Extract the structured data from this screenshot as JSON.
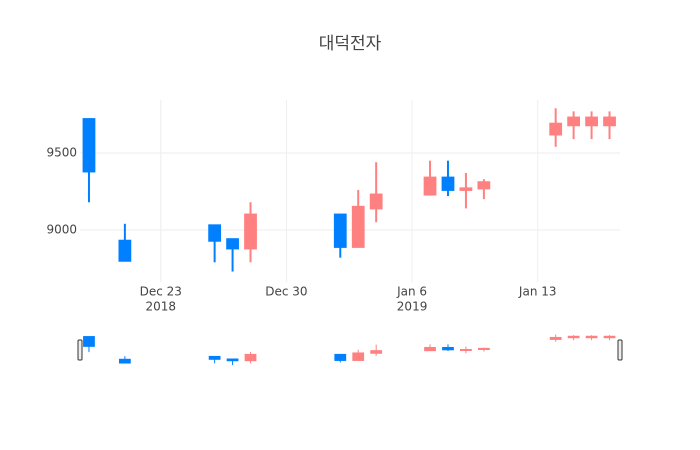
{
  "chart_data": {
    "type": "candlestick",
    "title": "대덕전자",
    "x": [
      "2018-12-19",
      "2018-12-21",
      "2018-12-26",
      "2018-12-27",
      "2018-12-28",
      "2019-01-02",
      "2019-01-03",
      "2019-01-04",
      "2019-01-07",
      "2019-01-08",
      "2019-01-09",
      "2019-01-10",
      "2019-01-14",
      "2019-01-15",
      "2019-01-16",
      "2019-01-17"
    ],
    "open": [
      9720,
      8930,
      9030,
      8940,
      8880,
      9100,
      8890,
      9140,
      9230,
      9340,
      9260,
      9270,
      9620,
      9680,
      9680,
      9680
    ],
    "high": [
      9720,
      9040,
      9030,
      8940,
      9180,
      9100,
      9260,
      9440,
      9450,
      9450,
      9370,
      9330,
      9790,
      9770,
      9770,
      9770
    ],
    "low": [
      9180,
      8800,
      8790,
      8730,
      8790,
      8820,
      8890,
      9050,
      9230,
      9220,
      9140,
      9200,
      9540,
      9590,
      9590,
      9590
    ],
    "close": [
      9380,
      8800,
      8930,
      8880,
      9100,
      8890,
      9150,
      9230,
      9340,
      9260,
      9270,
      9310,
      9690,
      9730,
      9730,
      9730
    ],
    "increasing_color": "#ff8080",
    "decreasing_color": "#0080ff",
    "xlim": [
      "2018-12-18 12:00",
      "2019-01-17 14:00"
    ],
    "xticks": [
      {
        "value": "2018-12-23",
        "label": "Dec 23",
        "year": "2018"
      },
      {
        "value": "2018-12-30",
        "label": "Dec 30"
      },
      {
        "value": "2019-01-06",
        "label": "Jan 6",
        "year": "2019"
      },
      {
        "value": "2019-01-13",
        "label": "Jan 13"
      }
    ],
    "ylim": [
      8662,
      9844
    ],
    "yticks": [
      9000,
      9500
    ],
    "grid": true,
    "rangeslider": true
  }
}
